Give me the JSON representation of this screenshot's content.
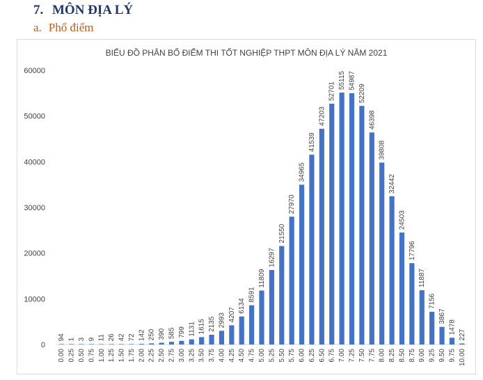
{
  "heading": {
    "number": "7.",
    "text": "MÔN ĐỊA LÝ"
  },
  "subheading": {
    "number": "a.",
    "text": "Phổ điểm"
  },
  "colors": {
    "bar": "#4472c4",
    "heading": "#1f3864",
    "subheading": "#c55a11"
  },
  "chart_data": {
    "type": "bar",
    "title": "BIỂU ĐỒ PHÂN BỐ ĐIỂM THI TỐT NGHIỆP THPT MÔN ĐỊA LÝ NĂM 2021",
    "xlabel": "",
    "ylabel": "",
    "ylim": [
      0,
      60000
    ],
    "yticks": [
      0,
      10000,
      20000,
      30000,
      40000,
      50000,
      60000
    ],
    "grid": false,
    "legend": "none",
    "categories": [
      "0.00",
      "0.25",
      "0.50",
      "0.75",
      "1.00",
      "1.25",
      "1.50",
      "1.75",
      "2.00",
      "2.25",
      "2.50",
      "2.75",
      "3.00",
      "3.25",
      "3.50",
      "3.75",
      "4.00",
      "4.25",
      "4.50",
      "4.75",
      "5.00",
      "5.25",
      "5.50",
      "5.75",
      "6.00",
      "6.25",
      "6.50",
      "6.75",
      "7.00",
      "7.25",
      "7.50",
      "7.75",
      "8.00",
      "8.25",
      "8.50",
      "8.75",
      "9.00",
      "9.25",
      "9.50",
      "9.75",
      "10.00"
    ],
    "values": [
      94,
      1,
      3,
      9,
      11,
      26,
      42,
      72,
      142,
      250,
      390,
      585,
      799,
      1131,
      1615,
      2135,
      2993,
      4207,
      6134,
      8591,
      11809,
      16297,
      21550,
      27970,
      34965,
      41539,
      47203,
      52701,
      55115,
      54987,
      52209,
      46398,
      39808,
      32442,
      24503,
      17796,
      11887,
      7156,
      3867,
      1478,
      227
    ]
  }
}
